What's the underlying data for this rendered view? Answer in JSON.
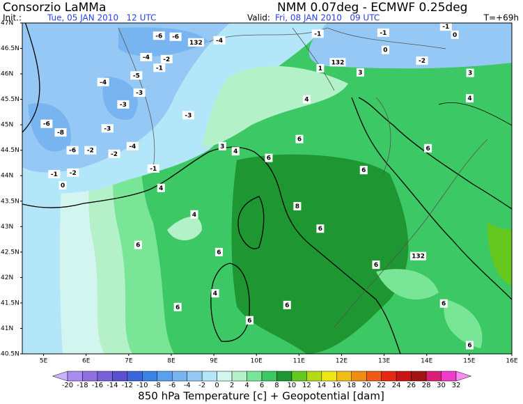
{
  "header": {
    "title": "Consorzio LaMMa",
    "model": "NMM 0.07deg - ECMWF 0.25deg",
    "init_label": "Init.:",
    "init": "Tue, 05 JAN 2010   12 UTC",
    "valid_label": "Valid:",
    "valid": "Fri, 08 JAN 2010   09 UTC",
    "lead": "T=+69h"
  },
  "map": {
    "xlim": [
      4.5,
      16
    ],
    "ylim": [
      40.5,
      47
    ],
    "lat_ticks": [
      {
        "value": 47,
        "label": "47N"
      },
      {
        "value": 46.5,
        "label": "46.5N"
      },
      {
        "value": 46,
        "label": "46N"
      },
      {
        "value": 45.5,
        "label": "45.5N"
      },
      {
        "value": 45,
        "label": "45N"
      },
      {
        "value": 44.5,
        "label": "44.5N"
      },
      {
        "value": 44,
        "label": "44N"
      },
      {
        "value": 43.5,
        "label": "43.5N"
      },
      {
        "value": 43,
        "label": "43N"
      },
      {
        "value": 42.5,
        "label": "42.5N"
      },
      {
        "value": 42,
        "label": "42N"
      },
      {
        "value": 41.5,
        "label": "41.5N"
      },
      {
        "value": 41,
        "label": "41N"
      },
      {
        "value": 40.5,
        "label": "40.5N"
      }
    ],
    "lon_ticks": [
      {
        "value": 5,
        "label": "5E"
      },
      {
        "value": 6,
        "label": "6E"
      },
      {
        "value": 7,
        "label": "7E"
      },
      {
        "value": 8,
        "label": "8E"
      },
      {
        "value": 9,
        "label": "9E"
      },
      {
        "value": 10,
        "label": "10E"
      },
      {
        "value": 11,
        "label": "11E"
      },
      {
        "value": 12,
        "label": "12E"
      },
      {
        "value": 13,
        "label": "13E"
      },
      {
        "value": 14,
        "label": "14E"
      },
      {
        "value": 15,
        "label": "15E"
      },
      {
        "value": 16,
        "label": "16E"
      }
    ],
    "contour_labels": [
      {
        "text": "-6",
        "lon": 7.71,
        "lat": 46.75
      },
      {
        "text": "-6",
        "lon": 8.1,
        "lat": 46.73
      },
      {
        "text": "132",
        "lon": 8.58,
        "lat": 46.62
      },
      {
        "text": "-4",
        "lon": 9.13,
        "lat": 46.66
      },
      {
        "text": "-4",
        "lon": 7.41,
        "lat": 46.33
      },
      {
        "text": "-2",
        "lon": 7.89,
        "lat": 46.29
      },
      {
        "text": "-1",
        "lon": 7.72,
        "lat": 46.12
      },
      {
        "text": "-5",
        "lon": 7.18,
        "lat": 45.97
      },
      {
        "text": "-4",
        "lon": 6.4,
        "lat": 45.84
      },
      {
        "text": "-3",
        "lon": 7.25,
        "lat": 45.63
      },
      {
        "text": "-3",
        "lon": 6.87,
        "lat": 45.4
      },
      {
        "text": "-3",
        "lon": 8.4,
        "lat": 45.19
      },
      {
        "text": "-6",
        "lon": 5.07,
        "lat": 45.02
      },
      {
        "text": "-8",
        "lon": 5.4,
        "lat": 44.85
      },
      {
        "text": "-3",
        "lon": 6.5,
        "lat": 44.93
      },
      {
        "text": "-6",
        "lon": 5.68,
        "lat": 44.5
      },
      {
        "text": "-2",
        "lon": 6.1,
        "lat": 44.5
      },
      {
        "text": "-2",
        "lon": 6.66,
        "lat": 44.43
      },
      {
        "text": "-4",
        "lon": 7.09,
        "lat": 44.58
      },
      {
        "text": "-1",
        "lon": 5.25,
        "lat": 44.03
      },
      {
        "text": "-2",
        "lon": 5.69,
        "lat": 44.06
      },
      {
        "text": "0",
        "lon": 5.45,
        "lat": 43.81
      },
      {
        "text": "-1",
        "lon": 7.58,
        "lat": 44.14
      },
      {
        "text": "4",
        "lon": 7.76,
        "lat": 43.76
      },
      {
        "text": "3",
        "lon": 9.2,
        "lat": 44.58
      },
      {
        "text": "4",
        "lon": 9.51,
        "lat": 44.48
      },
      {
        "text": "4",
        "lon": 11.18,
        "lat": 45.5
      },
      {
        "text": "-1",
        "lon": 11.44,
        "lat": 46.79
      },
      {
        "text": "-1",
        "lon": 12.98,
        "lat": 46.81
      },
      {
        "text": "-1",
        "lon": 14.45,
        "lat": 46.93
      },
      {
        "text": "0",
        "lon": 14.66,
        "lat": 46.77
      },
      {
        "text": "0",
        "lon": 13.03,
        "lat": 46.47
      },
      {
        "text": "-2",
        "lon": 13.89,
        "lat": 46.26
      },
      {
        "text": "132",
        "lon": 11.91,
        "lat": 46.23
      },
      {
        "text": "1",
        "lon": 11.5,
        "lat": 46.11
      },
      {
        "text": "3",
        "lon": 12.44,
        "lat": 46.03
      },
      {
        "text": "3",
        "lon": 15.02,
        "lat": 46.02
      },
      {
        "text": "4",
        "lon": 15.01,
        "lat": 45.52
      },
      {
        "text": "6",
        "lon": 11.01,
        "lat": 44.72
      },
      {
        "text": "6",
        "lon": 10.29,
        "lat": 44.35
      },
      {
        "text": "6",
        "lon": 14.03,
        "lat": 44.54
      },
      {
        "text": "6",
        "lon": 12.52,
        "lat": 44.11
      },
      {
        "text": "8",
        "lon": 10.96,
        "lat": 43.4
      },
      {
        "text": "6",
        "lon": 11.5,
        "lat": 42.96
      },
      {
        "text": "4",
        "lon": 8.54,
        "lat": 43.24
      },
      {
        "text": "6",
        "lon": 7.22,
        "lat": 42.64
      },
      {
        "text": "6",
        "lon": 9.12,
        "lat": 42.5
      },
      {
        "text": "4",
        "lon": 9.03,
        "lat": 41.69
      },
      {
        "text": "6",
        "lon": 8.15,
        "lat": 41.42
      },
      {
        "text": "6",
        "lon": 10.72,
        "lat": 41.46
      },
      {
        "text": "6",
        "lon": 9.84,
        "lat": 41.16
      },
      {
        "text": "6",
        "lon": 12.81,
        "lat": 42.25
      },
      {
        "text": "132",
        "lon": 13.8,
        "lat": 42.42
      },
      {
        "text": "6",
        "lon": 14.4,
        "lat": 41.49
      },
      {
        "text": "6",
        "lon": 15.01,
        "lat": 40.67
      }
    ]
  },
  "colorbar": {
    "title": "850 hPa Temperature [c] + Geopotential [dam]",
    "levels": [
      -20,
      -18,
      -16,
      -14,
      -12,
      -10,
      -8,
      -6,
      -4,
      -2,
      0,
      2,
      4,
      6,
      8,
      10,
      12,
      14,
      16,
      18,
      20,
      22,
      24,
      26,
      28,
      30,
      32
    ],
    "colors": [
      "#c8b4ff",
      "#a88cf0",
      "#9070e0",
      "#7860d8",
      "#5a50d0",
      "#3c64dc",
      "#3c82e6",
      "#5aa0f0",
      "#78b4f0",
      "#96c8f5",
      "#b4e6fa",
      "#d2f5f0",
      "#b4f0c8",
      "#78e696",
      "#3cc864",
      "#1e9632",
      "#64c81e",
      "#b4dc14",
      "#f0e614",
      "#f0be14",
      "#f08c14",
      "#f05a14",
      "#e62814",
      "#c81414",
      "#a01414",
      "#dc1e78",
      "#f03cc8",
      "#fa8cf0"
    ]
  }
}
